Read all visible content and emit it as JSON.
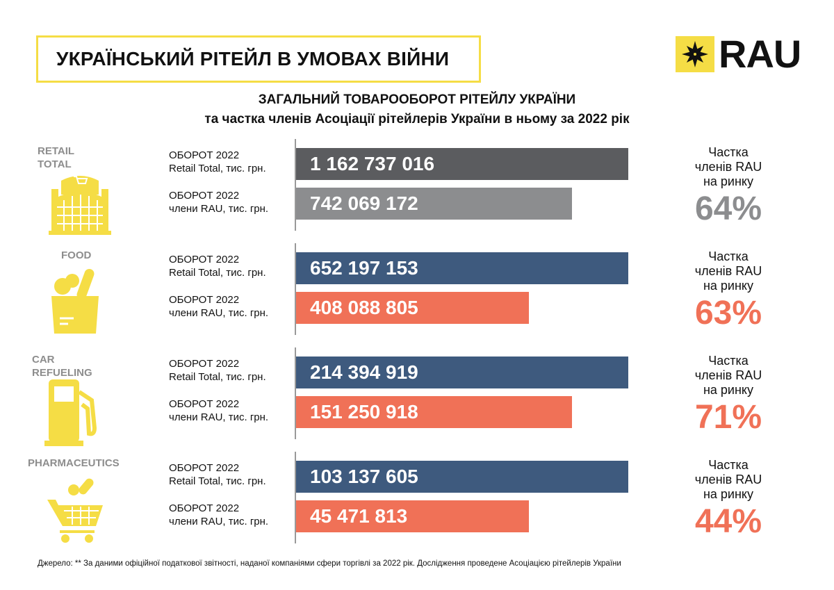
{
  "header": {
    "title": "УКРАЇНСЬКИЙ РІТЕЙЛ В УМОВАХ ВІЙНИ",
    "logo_text": "RAU"
  },
  "subtitle": {
    "line1": "ЗАГАЛЬНИЙ ТОВАРООБОРОТ РІТЕЙЛУ УКРАЇНИ",
    "line2": "та частка членів Асоціації рітейлерів України в ньому за 2022 рік"
  },
  "labels": {
    "total_l1": "ОБОРОТ 2022",
    "total_l2": "Retail Total, тис. грн.",
    "rau_l1": "ОБОРОТ 2022",
    "rau_l2": "члени RAU, тис. грн.",
    "share_l1": "Частка",
    "share_l2": "членів RAU",
    "share_l3": "на ринку"
  },
  "chart_data": {
    "type": "bar",
    "unit": "тис. грн.",
    "categories": [
      "RETAIL TOTAL",
      "FOOD",
      "CAR REFUELING",
      "PHARMACEUTICS"
    ],
    "series": [
      {
        "name": "Retail Total",
        "values": [
          "1 162 737 016",
          "652 197 153",
          "214 394 919",
          "103 137 605"
        ],
        "fill": [
          1,
          1,
          1,
          1
        ]
      },
      {
        "name": "члени RAU",
        "values": [
          "742 069 172",
          "408 088 805",
          "151 250 918",
          "45 471 813"
        ],
        "fill": [
          0.83,
          0.7,
          0.83,
          0.7
        ]
      }
    ],
    "shares": [
      "64%",
      "63%",
      "71%",
      "44%"
    ]
  },
  "groups": [
    {
      "cat": "RETAIL\nTOTAL",
      "icon": "shopping-mall-icon",
      "total_color": "#5b5c5f",
      "rau_color": "#8c8d8f",
      "pct_color": "#8c8d8f"
    },
    {
      "cat": "FOOD",
      "icon": "grocery-bag-icon",
      "total_color": "#3e5a7e",
      "rau_color": "#f07157",
      "pct_color": "#f07157"
    },
    {
      "cat": "CAR\nREFUELING",
      "icon": "fuel-pump-icon",
      "total_color": "#3e5a7e",
      "rau_color": "#f07157",
      "pct_color": "#f07157"
    },
    {
      "cat": "PHARMACEUTICS",
      "icon": "pharmacy-cart-icon",
      "total_color": "#3e5a7e",
      "rau_color": "#f07157",
      "pct_color": "#f07157"
    }
  ],
  "footer": "Джерело: ** За даними офіційної податкової звітності, наданої компаніями сфери торгівлі за 2022 рік. Дослідження проведене Асоціацією рітейлерів України",
  "colors": {
    "yellow": "#f5dd45"
  }
}
